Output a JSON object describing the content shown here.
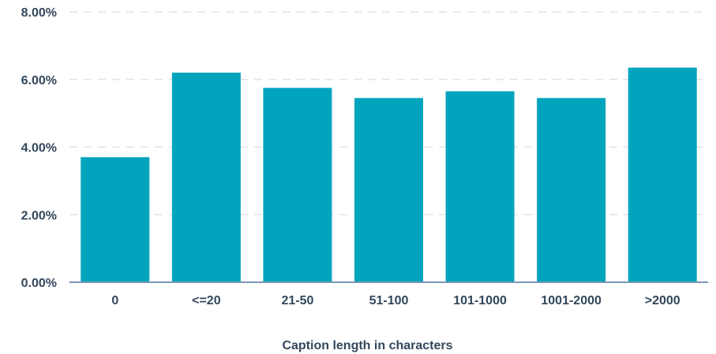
{
  "chart_data": {
    "type": "bar",
    "title": "",
    "xlabel": "Caption length in characters",
    "ylabel": "",
    "categories": [
      "0",
      "<=20",
      "21-50",
      "51-100",
      "101-1000",
      "1001-2000",
      ">2000"
    ],
    "values": [
      3.7,
      6.2,
      5.75,
      5.45,
      5.65,
      5.45,
      6.35
    ],
    "ylim": [
      0,
      8
    ],
    "yticks": [
      {
        "value": 0,
        "label": "0.00%"
      },
      {
        "value": 2,
        "label": "2.00%"
      },
      {
        "value": 4,
        "label": "4.00%"
      },
      {
        "value": 6,
        "label": "6.00%"
      },
      {
        "value": 8,
        "label": "8.00%"
      }
    ],
    "grid": true,
    "legend": "none",
    "colors": {
      "bar": "#00a4bd",
      "grid": "#dfe3eb",
      "axis": "#7c98b6",
      "text": "#33475b"
    }
  }
}
